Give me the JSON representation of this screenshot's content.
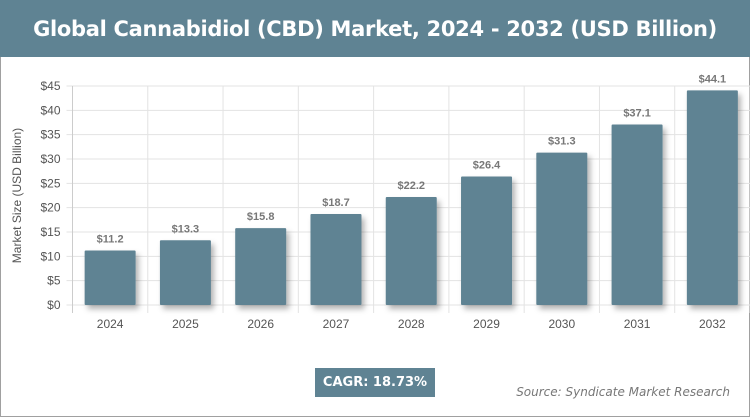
{
  "chart_data": {
    "type": "bar",
    "title": "Global Cannabidiol (CBD) Market, 2024 - 2032 (USD Billion)",
    "categories": [
      "2024",
      "2025",
      "2026",
      "2027",
      "2028",
      "2029",
      "2030",
      "2031",
      "2032"
    ],
    "values": [
      11.2,
      13.3,
      15.8,
      18.7,
      22.2,
      26.4,
      31.3,
      37.1,
      44.1
    ],
    "data_labels": [
      "$11.2",
      "$13.3",
      "$15.8",
      "$18.7",
      "$22.2",
      "$26.4",
      "$31.3",
      "$37.1",
      "$44.1"
    ],
    "xlabel": "",
    "ylabel": "Market Size (USD Billion)",
    "ylim": [
      0,
      45
    ],
    "yticks": [
      "$0",
      "$5",
      "$10",
      "$15",
      "$20",
      "$25",
      "$30",
      "$35",
      "$40",
      "$45"
    ],
    "grid": true,
    "bar_color": "#5f8393"
  },
  "cagr": "CAGR: 18.73%",
  "source": "Source: Syndicate Market Research"
}
